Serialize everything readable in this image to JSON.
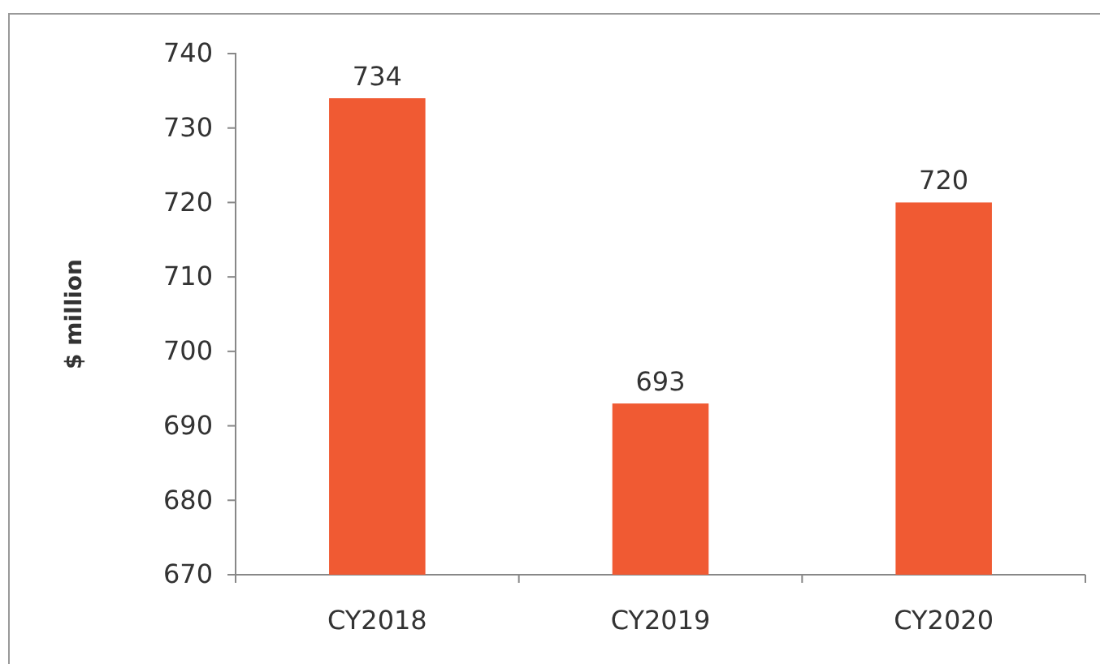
{
  "chart_data": {
    "type": "bar",
    "ylabel": "$ million",
    "categories": [
      "CY2018",
      "CY2019",
      "CY2020"
    ],
    "values": [
      734,
      693,
      720
    ],
    "color": "#f05a33",
    "ylim": [
      670,
      740
    ],
    "yticks": [
      670,
      680,
      690,
      700,
      710,
      720,
      730,
      740
    ],
    "data_labels": true,
    "grid": false
  }
}
